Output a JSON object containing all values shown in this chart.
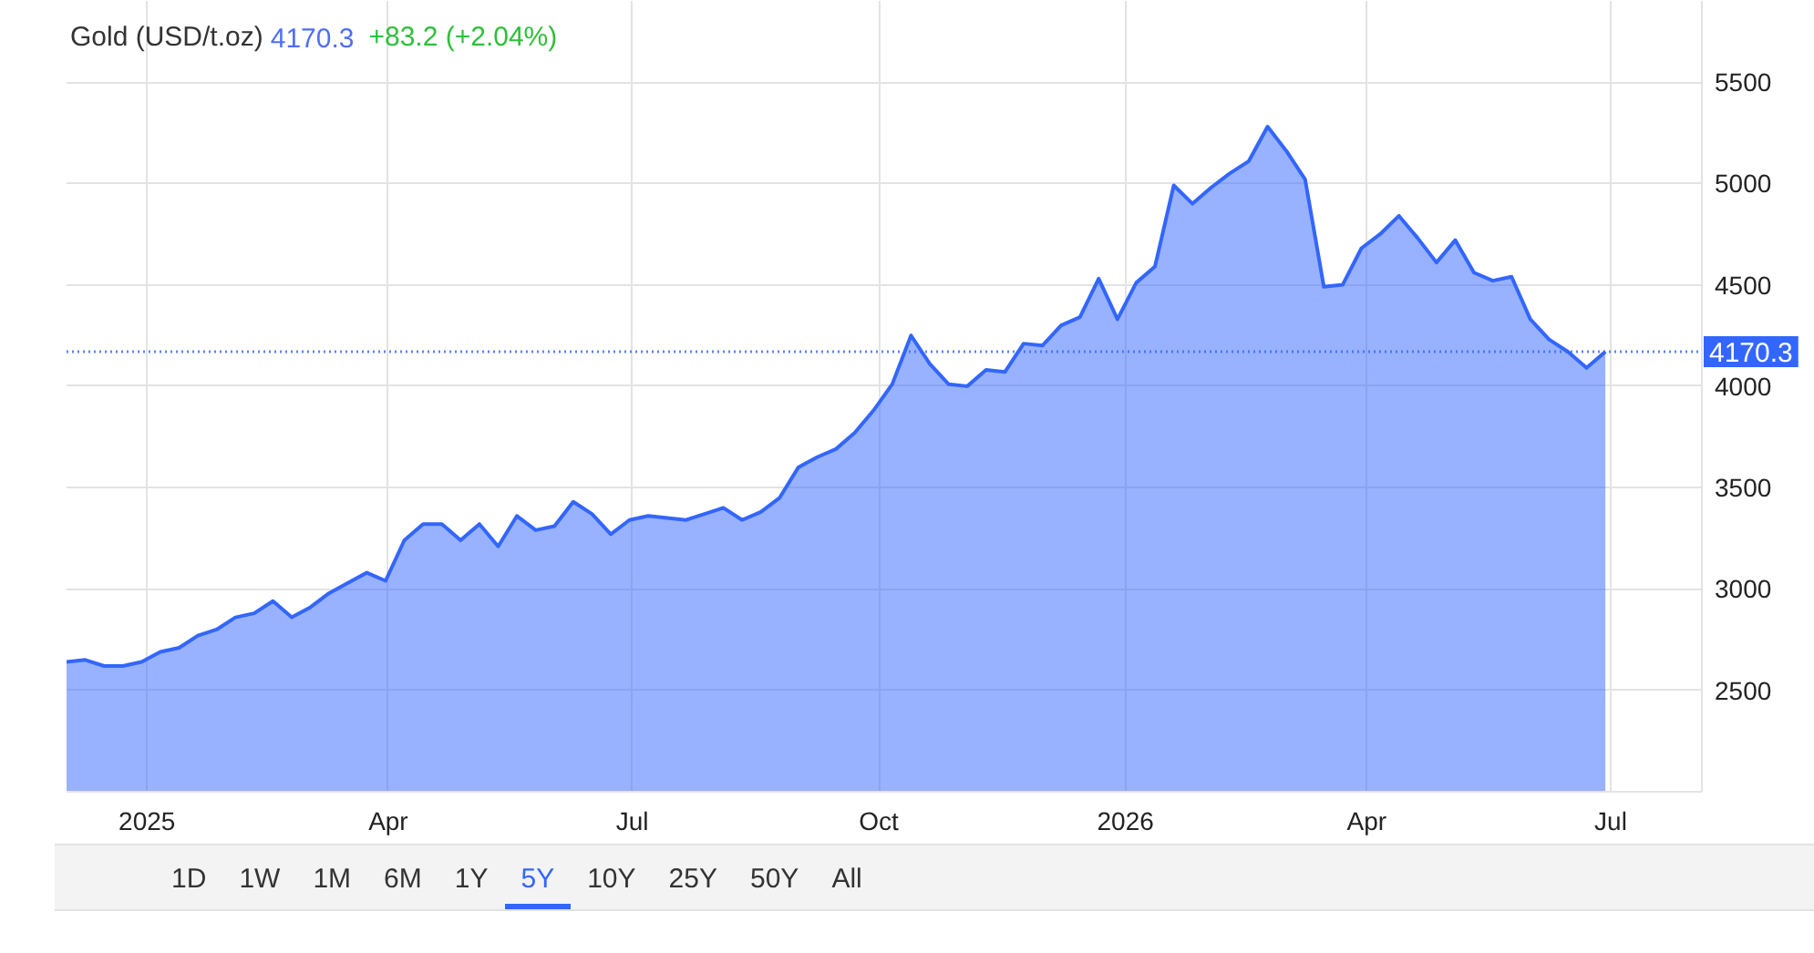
{
  "chart_data": {
    "type": "area",
    "title": "Gold (USD/t.oz)",
    "subtitle": "4170.3",
    "annotations": [
      "+83.2 (+2.04%)",
      "1D",
      "1W",
      "1M",
      "6M",
      "1Y",
      "5Y",
      "10Y",
      "25Y",
      "50Y",
      "All"
    ],
    "x": [
      "2024-12-02",
      "2024-12-09",
      "2024-12-16",
      "2024-12-23",
      "2024-12-30",
      "2025-01-06",
      "2025-01-13",
      "2025-01-20",
      "2025-01-27",
      "2025-02-03",
      "2025-02-10",
      "2025-02-17",
      "2025-02-24",
      "2025-03-03",
      "2025-03-10",
      "2025-03-17",
      "2025-03-24",
      "2025-03-31",
      "2025-04-07",
      "2025-04-14",
      "2025-04-21",
      "2025-04-28",
      "2025-05-05",
      "2025-05-12",
      "2025-05-19",
      "2025-05-26",
      "2025-06-02",
      "2025-06-09",
      "2025-06-16",
      "2025-06-23",
      "2025-06-30",
      "2025-07-07",
      "2025-07-14",
      "2025-07-21",
      "2025-07-28",
      "2025-08-04",
      "2025-08-11",
      "2025-08-18",
      "2025-08-25",
      "2025-09-01",
      "2025-09-08",
      "2025-09-15",
      "2025-09-22",
      "2025-09-29",
      "2025-10-06",
      "2025-10-13",
      "2025-10-20",
      "2025-10-27",
      "2025-11-03",
      "2025-11-10",
      "2025-11-17",
      "2025-11-24",
      "2025-12-01",
      "2025-12-08",
      "2025-12-15",
      "2025-12-22",
      "2025-12-29",
      "2026-01-05",
      "2026-01-12",
      "2026-01-19",
      "2026-01-26",
      "2026-02-02",
      "2026-02-09",
      "2026-02-16",
      "2026-02-23",
      "2026-03-02",
      "2026-03-09",
      "2026-03-16",
      "2026-03-23",
      "2026-03-30",
      "2026-04-06",
      "2026-04-13",
      "2026-04-20",
      "2026-04-27",
      "2026-05-04",
      "2026-05-11",
      "2026-05-18",
      "2026-05-25",
      "2026-06-01",
      "2026-06-08",
      "2026-06-15",
      "2026-06-22",
      "2026-06-29"
    ],
    "series": [
      {
        "color": "#3366ff",
        "values": [
          2640,
          2650,
          2620,
          2620,
          2640,
          2690,
          2710,
          2770,
          2800,
          2860,
          2880,
          2940,
          2860,
          2910,
          2980,
          3030,
          3080,
          3040,
          3240,
          3320,
          3320,
          3240,
          3320,
          3210,
          3360,
          3290,
          3310,
          3430,
          3370,
          3270,
          3340,
          3360,
          3350,
          3340,
          3370,
          3400,
          3340,
          3380,
          3450,
          3600,
          3650,
          3690,
          3770,
          3880,
          4010,
          4250,
          4110,
          4010,
          4000,
          4080,
          4070,
          4210,
          4200,
          4300,
          4340,
          4530,
          4330,
          4510,
          4590,
          4990,
          4900,
          4980,
          5050,
          5110,
          5280,
          5160,
          5020,
          4490,
          4500,
          4680,
          4750,
          4840,
          4730,
          4610,
          4720,
          4560,
          4520,
          4540,
          4330,
          4230,
          4170,
          4090,
          4170.3
        ]
      }
    ],
    "xlim": [
      "2024-12-02",
      "2026-08-04"
    ],
    "xticks": [
      {
        "value": "2025-01-01",
        "label": "2025"
      },
      {
        "value": "2025-04-01",
        "label": "Apr"
      },
      {
        "value": "2025-07-01",
        "label": "Jul"
      },
      {
        "value": "2025-10-01",
        "label": "Oct"
      },
      {
        "value": "2026-01-01",
        "label": "2026"
      },
      {
        "value": "2026-04-01",
        "label": "Apr"
      },
      {
        "value": "2026-07-01",
        "label": "Jul"
      }
    ],
    "ylim": [
      2000,
      5900
    ],
    "yticks": [
      2500,
      3000,
      3500,
      4000,
      4500,
      5000,
      5500
    ],
    "grid": true,
    "ref_lines": [
      {
        "axis": "y",
        "value": 4170.3,
        "label": "4170.3",
        "color": "#3366ff",
        "line_style": "dotted"
      }
    ]
  }
}
